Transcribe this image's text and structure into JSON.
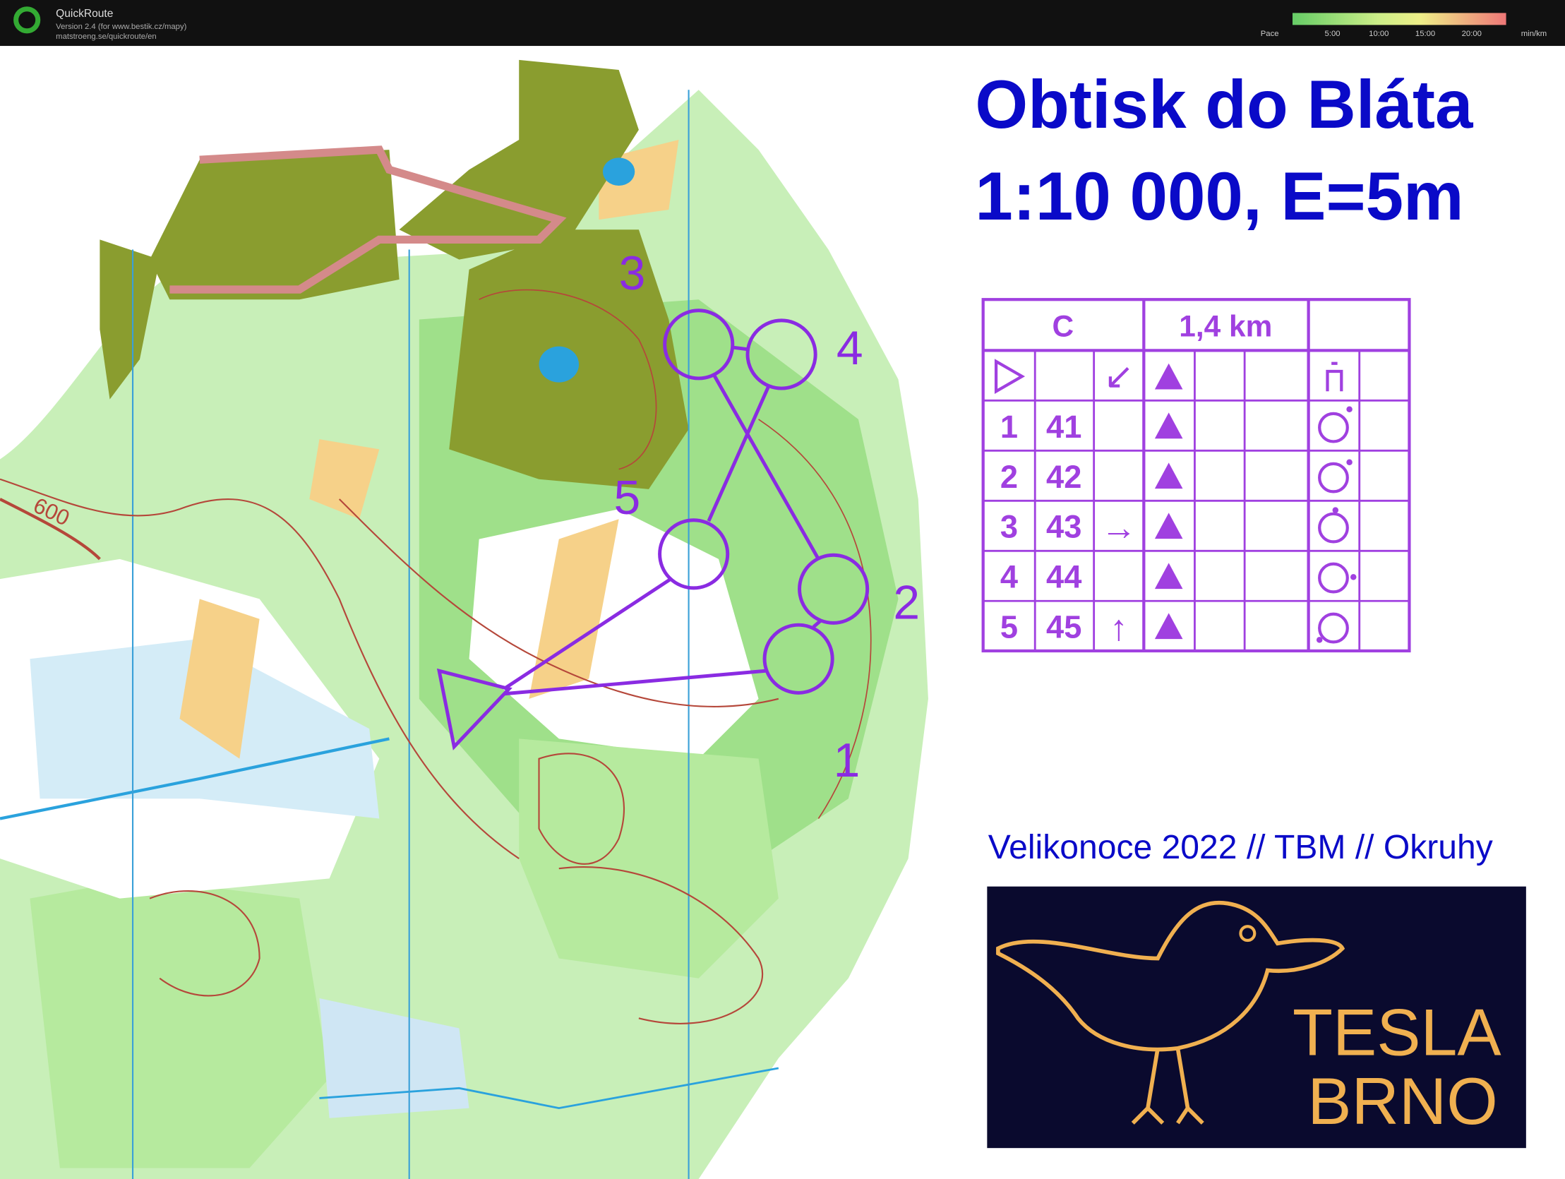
{
  "header": {
    "app": "QuickRoute",
    "version": "Version 2.4  (for www.bestik.cz/mapy)",
    "url": "matstroeng.se/quickroute/en",
    "pace_label": "Pace",
    "pace_ticks": [
      "5:00",
      "10:00",
      "15:00",
      "20:00"
    ],
    "pace_unit": "min/km"
  },
  "map": {
    "title": "Obtisk do Bláta",
    "scale": "1:10 000, E=5m",
    "contour_label": "600",
    "control_numbers": [
      "1",
      "2",
      "3",
      "4",
      "5"
    ],
    "footer": "Velikonoce 2022 // TBM // Okruhy",
    "logo": [
      "TESLA",
      "BRNO"
    ]
  },
  "description": {
    "class": "C",
    "length": "1,4 km",
    "start": {
      "direction": "↙"
    },
    "rows": [
      {
        "number": "1",
        "code": "41"
      },
      {
        "number": "2",
        "code": "42"
      },
      {
        "number": "3",
        "code": "43",
        "direction": "→"
      },
      {
        "number": "4",
        "code": "44"
      },
      {
        "number": "5",
        "code": "45",
        "direction": "↑"
      }
    ]
  }
}
